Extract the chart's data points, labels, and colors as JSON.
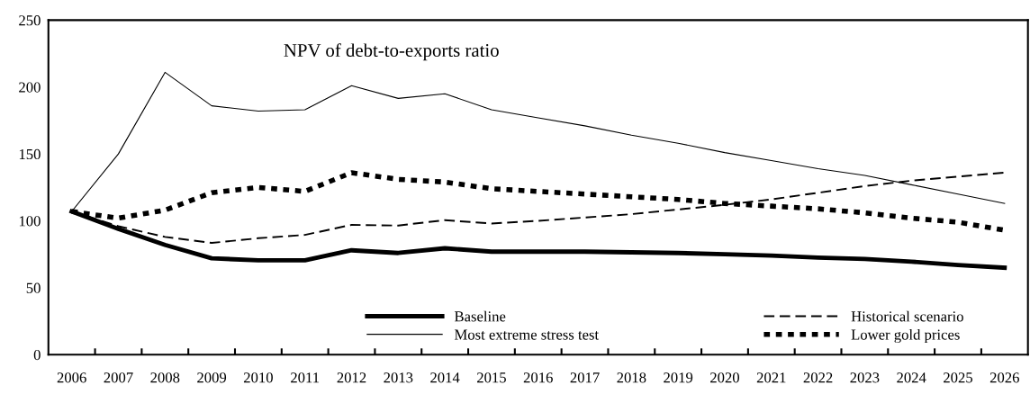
{
  "chart_data": {
    "type": "line",
    "title": "NPV of debt-to-exports ratio",
    "categories": [
      "2006",
      "2007",
      "2008",
      "2009",
      "2010",
      "2011",
      "2012",
      "2013",
      "2014",
      "2015",
      "2016",
      "2017",
      "2018",
      "2019",
      "2020",
      "2021",
      "2022",
      "2023",
      "2024",
      "2025",
      "2026"
    ],
    "series": [
      {
        "name": "Baseline",
        "color": "#000000",
        "line_style": "solid",
        "values": [
          107,
          94,
          82,
          72,
          70.5,
          70.5,
          78,
          76,
          79.5,
          77,
          77,
          77,
          76.5,
          76,
          75,
          74,
          72.5,
          71.5,
          69.5,
          67,
          65
        ]
      },
      {
        "name": "Historical scenario",
        "color": "#000000",
        "line_style": "dashed",
        "values": [
          107,
          96,
          88,
          83.5,
          87,
          89.5,
          97,
          96.5,
          100.5,
          98,
          100,
          102.5,
          105,
          108.5,
          112,
          116,
          121,
          126,
          130,
          133,
          136
        ]
      },
      {
        "name": "Most extreme stress test",
        "color": "#000000",
        "line_style": "solid",
        "values": [
          107,
          150,
          211,
          186,
          182,
          183,
          201,
          191.5,
          195,
          183,
          177,
          171,
          164,
          158,
          151,
          145,
          139,
          134,
          127,
          120,
          113
        ]
      },
      {
        "name": "Lower gold prices",
        "color": "#000000",
        "line_style": "dotted",
        "values": [
          107,
          102,
          108,
          121,
          125,
          122,
          136,
          131,
          129,
          124,
          122,
          120,
          118,
          116,
          113,
          111,
          109,
          106,
          102,
          99,
          93
        ]
      }
    ],
    "ylim": [
      0,
      250
    ],
    "yticks": [
      0,
      50,
      100,
      150,
      200,
      250
    ],
    "grid": false,
    "legend": "bottom",
    "marker": "none"
  }
}
